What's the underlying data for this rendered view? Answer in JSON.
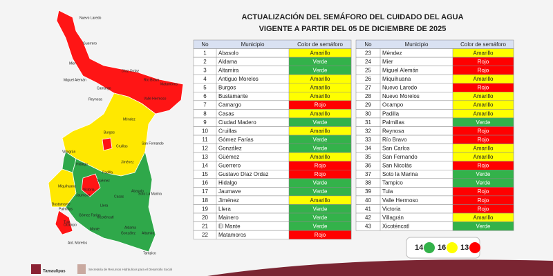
{
  "header": {
    "title": "ACTUALIZACIÓN DEL SEMÁFORO DEL CUIDADO DEL AGUA",
    "subtitle": "VIGENTE A PARTIR DEL 05 DE DICIEMBRE DE 2025"
  },
  "status_colors": {
    "Amarillo": "#ffff00",
    "Verde": "#33b24a",
    "Rojo": "#ff0000"
  },
  "tables": [
    {
      "header": [
        "No",
        "Municipio",
        "Color de semáforo"
      ],
      "rows": [
        [
          1,
          "Abasolo",
          "Amarillo"
        ],
        [
          2,
          "Aldama",
          "Verde"
        ],
        [
          3,
          "Altamira",
          "Verde"
        ],
        [
          4,
          "Antiguo Morelos",
          "Amarillo"
        ],
        [
          5,
          "Burgos",
          "Amarillo"
        ],
        [
          6,
          "Bustamante",
          "Amarillo"
        ],
        [
          7,
          "Camargo",
          "Rojo"
        ],
        [
          8,
          "Casas",
          "Amarillo"
        ],
        [
          9,
          "Ciudad Madero",
          "Verde"
        ],
        [
          10,
          "Cruillas",
          "Amarillo"
        ],
        [
          11,
          "Gómez Farías",
          "Verde"
        ],
        [
          12,
          "González",
          "Verde"
        ],
        [
          13,
          "Güémez",
          "Amarillo"
        ],
        [
          14,
          "Guerrero",
          "Rojo"
        ],
        [
          15,
          "Gustavo Díaz Ordaz",
          "Rojo"
        ],
        [
          16,
          "Hidalgo",
          "Verde"
        ],
        [
          17,
          "Jaumave",
          "Verde"
        ],
        [
          18,
          "Jiménez",
          "Amarillo"
        ],
        [
          19,
          "Llera",
          "Verde"
        ],
        [
          20,
          "Mainero",
          "Verde"
        ],
        [
          21,
          "El Mante",
          "Verde"
        ],
        [
          22,
          "Matamoros",
          "Rojo"
        ]
      ]
    },
    {
      "header": [
        "No",
        "Municipio",
        "Color de semáforo"
      ],
      "rows": [
        [
          23,
          "Méndez",
          "Amarillo"
        ],
        [
          24,
          "Mier",
          "Rojo"
        ],
        [
          25,
          "Miguel Alemán",
          "Rojo"
        ],
        [
          26,
          "Miquihuana",
          "Amarillo"
        ],
        [
          27,
          "Nuevo Laredo",
          "Rojo"
        ],
        [
          28,
          "Nuevo Morelos",
          "Amarillo"
        ],
        [
          29,
          "Ocampo",
          "Amarillo"
        ],
        [
          30,
          "Padilla",
          "Amarillo"
        ],
        [
          31,
          "Palmillas",
          "Verde"
        ],
        [
          32,
          "Reynosa",
          "Rojo"
        ],
        [
          33,
          "Río Bravo",
          "Rojo"
        ],
        [
          34,
          "San Carlos",
          "Amarillo"
        ],
        [
          35,
          "San Fernando",
          "Amarillo"
        ],
        [
          36,
          "San Nicolás",
          "Rojo"
        ],
        [
          37,
          "Soto la Marina",
          "Verde"
        ],
        [
          38,
          "Tampico",
          "Verde"
        ],
        [
          39,
          "Tula",
          "Rojo"
        ],
        [
          40,
          "Valle Hermoso",
          "Rojo"
        ],
        [
          41,
          "Victoria",
          "Rojo"
        ],
        [
          42,
          "Villagrán",
          "Amarillo"
        ],
        [
          43,
          "Xicoténcatl",
          "Verde"
        ]
      ]
    }
  ],
  "summary": [
    {
      "count": 14,
      "status": "Verde"
    },
    {
      "count": 16,
      "status": "Amarillo"
    },
    {
      "count": 13,
      "status": "Rojo"
    }
  ],
  "map_labels": [
    "Nuevo Laredo",
    "Guerrero",
    "Mier",
    "Miguel Alemán",
    "Camargo",
    "Díaz Ordaz",
    "Río Bravo",
    "Matamoros",
    "Reynosa",
    "Valle Hermoso",
    "Méndez",
    "Burgos",
    "Cruillas",
    "San Fernando",
    "Villagrán",
    "Hidalgo",
    "Padilla",
    "Jiménez",
    "Güémez",
    "Abasolo",
    "Miquihuana",
    "Jaumave",
    "Victoria",
    "Llera",
    "Casas",
    "Soto La Marina",
    "Palmillas",
    "Bustamante",
    "Tula",
    "Ocampo",
    "Gómez Farías",
    "Xicoténcatl",
    "Mante",
    "Aldama",
    "González",
    "Altamira",
    "Tampico",
    "Ant. Morelos"
  ],
  "footer": {
    "logo1": "Tamaulipas",
    "logo2": "Secretaría de Recursos Hidráulicos para el Desarrollo Social"
  }
}
